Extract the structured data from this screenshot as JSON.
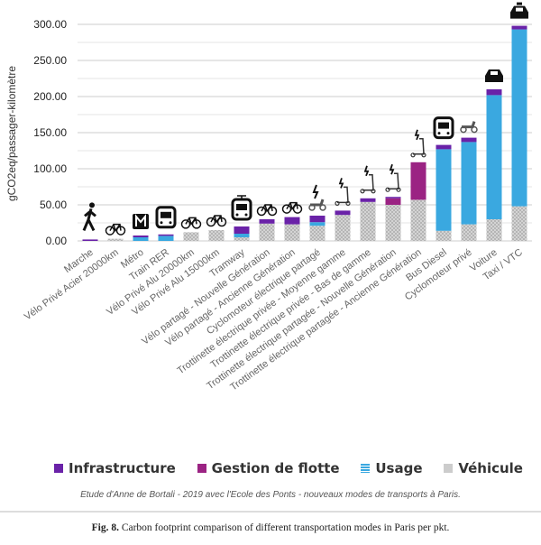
{
  "chart_data": {
    "type": "bar",
    "stacked": true,
    "ylabel": "gCO2eq/passager-kilomètre",
    "ylim": [
      0,
      300
    ],
    "yticks": [
      "0.00",
      "50.00",
      "100.00",
      "150.00",
      "200.00",
      "250.00",
      "300.00"
    ],
    "grid": true,
    "legend_position": "bottom",
    "categories": [
      "Marche",
      "Vélo Privé Acier 20000km",
      "Métro",
      "Train RER",
      "Vélo Privé Alu 20000km",
      "Vélo Privé Alu 15000km",
      "Tramway",
      "Vélo partagé - Nouvelle Génération",
      "Vélo partagé - Ancienne Génération",
      "Cyclomoteur électrique partagé",
      "Trottinette électrique privée - Moyenne gamme",
      "Trottinette électrique privée - Bas de gamme",
      "Trottinette électrique partagée - Nouvelle Génération",
      "Trottinette électrique partagée - Ancienne Génération",
      "Bus Diesel",
      "Cyclomoteur privé",
      "Voiture",
      "Taxi / VTC"
    ],
    "icons": [
      "walking-person-icon",
      "bicycle-icon",
      "metro-icon",
      "train-icon",
      "bicycle-icon",
      "bicycle-icon",
      "tram-icon",
      "bicycle-icon",
      "bicycle-icon",
      "electric-scooter-moped-icon",
      "electric-kick-scooter-icon",
      "electric-kick-scooter-icon",
      "electric-kick-scooter-icon",
      "electric-kick-scooter-icon",
      "bus-icon",
      "moped-icon",
      "car-icon",
      "taxi-icon"
    ],
    "series": [
      {
        "name": "Véhicule",
        "color": "#c9c9c9",
        "values": [
          0,
          3,
          0,
          0,
          12,
          15,
          5,
          24,
          23,
          21,
          36,
          54,
          50,
          57,
          14,
          23,
          30,
          48
        ]
      },
      {
        "name": "Usage",
        "color": "#3aa8e0",
        "values": [
          0,
          0,
          5,
          7,
          0,
          0,
          5,
          0,
          0,
          5,
          0,
          0,
          0,
          0,
          113,
          114,
          172,
          245
        ]
      },
      {
        "name": "Gestion de flotte",
        "color": "#9b2383",
        "values": [
          0,
          0,
          0,
          0,
          0,
          0,
          0,
          0,
          0,
          0,
          0,
          0,
          9,
          52,
          0,
          0,
          0,
          0
        ]
      },
      {
        "name": "Infrastructure",
        "color": "#6a22a8",
        "values": [
          2,
          0,
          2.5,
          2,
          0,
          0,
          10,
          6,
          10,
          9,
          6,
          5,
          2,
          0,
          6,
          6,
          8,
          5
        ]
      }
    ]
  },
  "legend": {
    "infrastructure": "Infrastructure",
    "gestion": "Gestion de flotte",
    "usage": "Usage",
    "vehicule": "Véhicule"
  },
  "source_note": "Etude d'Anne de Bortali  - 2019 avec l'Ecole des Ponts - nouveaux modes de transports à Paris.",
  "caption": {
    "label": "Fig. 8.",
    "text": "Carbon footprint comparison of different transportation modes in Paris per pkt."
  }
}
